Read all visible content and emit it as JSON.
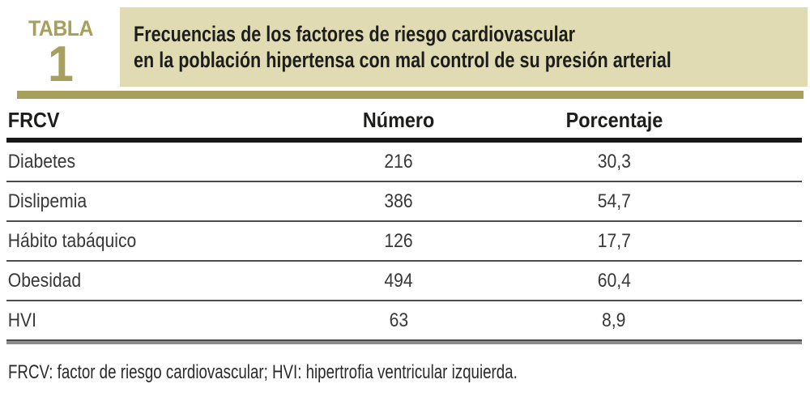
{
  "colors": {
    "olive": "#a6a05c",
    "beige": "#e0dbb2"
  },
  "badge": {
    "label": "TABLA",
    "number": "1"
  },
  "title": {
    "line1": "Frecuencias de los factores de riesgo cardiovascular",
    "line2": "en la población hipertensa con mal control de su presión arterial"
  },
  "table": {
    "headers": [
      "FRCV",
      "Número",
      "Porcentaje"
    ],
    "rows": [
      [
        "Diabetes",
        "216",
        "30,3"
      ],
      [
        "Dislipemia",
        "386",
        "54,7"
      ],
      [
        "Hábito tabáquico",
        "126",
        "17,7"
      ],
      [
        "Obesidad",
        "494",
        "60,4"
      ],
      [
        "HVI",
        "63",
        "8,9"
      ]
    ]
  },
  "footnote": "FRCV: factor de riesgo cardiovascular; HVI: hipertrofia ventricular izquierda.",
  "chart_data": {
    "type": "table",
    "title": "Frecuencias de los factores de riesgo cardiovascular en la población hipertensa con mal control de su presión arterial",
    "columns": [
      "FRCV",
      "Número",
      "Porcentaje"
    ],
    "rows": [
      {
        "FRCV": "Diabetes",
        "Número": 216,
        "Porcentaje": 30.3
      },
      {
        "FRCV": "Dislipemia",
        "Número": 386,
        "Porcentaje": 54.7
      },
      {
        "FRCV": "Hábito tabáquico",
        "Número": 126,
        "Porcentaje": 17.7
      },
      {
        "FRCV": "Obesidad",
        "Número": 494,
        "Porcentaje": 60.4
      },
      {
        "FRCV": "HVI",
        "Número": 63,
        "Porcentaje": 8.9
      }
    ]
  }
}
